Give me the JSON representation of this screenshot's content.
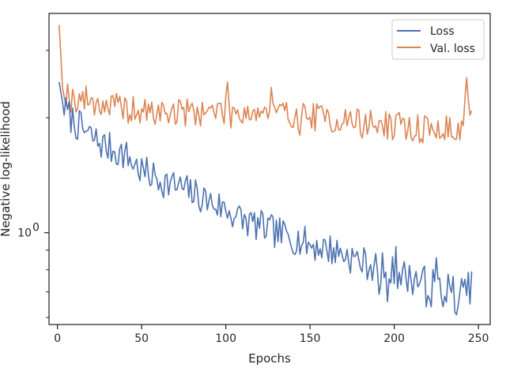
{
  "chart_data": {
    "type": "line",
    "title": "",
    "xlabel": "Epochs",
    "ylabel": "Negative log-likelihood",
    "x_ticks": [
      0,
      50,
      100,
      150,
      200,
      250
    ],
    "x_tick_labels": [
      "0",
      "50",
      "100",
      "150",
      "200",
      "250"
    ],
    "y_scale": "log",
    "y_tick_labels": [
      {
        "value": 1,
        "base": "10",
        "exp": "0"
      }
    ],
    "y_minor_ticks": [
      0.6,
      0.7,
      0.8,
      0.9,
      2,
      3
    ],
    "xlim": [
      -5,
      257
    ],
    "ylim": [
      0.575,
      3.75
    ],
    "grid": false,
    "legend_position": "upper right",
    "colors": {
      "loss": "#4c72b0",
      "val_loss": "#dd8452"
    },
    "x_start": 1,
    "x_step": 1,
    "series": [
      {
        "name": "Loss",
        "color": "#4c72b0",
        "anchors": [
          [
            1,
            2.48
          ],
          [
            3,
            2.2
          ],
          [
            5,
            2.08
          ],
          [
            10,
            1.95
          ],
          [
            15,
            1.86
          ],
          [
            20,
            1.78
          ],
          [
            25,
            1.72
          ],
          [
            30,
            1.67
          ],
          [
            40,
            1.6
          ],
          [
            50,
            1.45
          ],
          [
            60,
            1.38
          ],
          [
            75,
            1.3
          ],
          [
            90,
            1.21
          ],
          [
            100,
            1.15
          ],
          [
            110,
            1.08
          ],
          [
            120,
            1.04
          ],
          [
            130,
            1.0
          ],
          [
            140,
            0.97
          ],
          [
            150,
            0.93
          ],
          [
            160,
            0.91
          ],
          [
            170,
            0.88
          ],
          [
            180,
            0.84
          ],
          [
            190,
            0.81
          ],
          [
            200,
            0.79
          ],
          [
            210,
            0.76
          ],
          [
            220,
            0.74
          ],
          [
            230,
            0.72
          ],
          [
            240,
            0.71
          ],
          [
            246,
            0.72
          ]
        ],
        "noise": 0.045,
        "seed": 7,
        "spikes": [
          [
            191,
            0.69
          ],
          [
            196,
            0.66
          ],
          [
            201,
            0.92
          ],
          [
            219,
            0.64
          ],
          [
            222,
            0.64
          ],
          [
            225,
            0.86
          ],
          [
            229,
            0.64
          ],
          [
            236,
            0.62
          ],
          [
            237,
            0.61
          ],
          [
            241,
            0.72
          ]
        ],
        "values": []
      },
      {
        "name": "Val. loss",
        "color": "#dd8452",
        "anchors": [
          [
            1,
            3.5
          ],
          [
            2,
            2.92
          ],
          [
            3,
            2.4
          ],
          [
            5,
            2.35
          ],
          [
            8,
            2.24
          ],
          [
            15,
            2.24
          ],
          [
            25,
            2.18
          ],
          [
            50,
            2.06
          ],
          [
            75,
            2.07
          ],
          [
            100,
            2.09
          ],
          [
            125,
            2.06
          ],
          [
            150,
            2.02
          ],
          [
            175,
            1.96
          ],
          [
            200,
            1.9
          ],
          [
            225,
            1.86
          ],
          [
            240,
            1.86
          ],
          [
            243,
            2.4
          ],
          [
            246,
            2.0
          ]
        ],
        "noise": 0.04,
        "seed": 19,
        "spikes": [
          [
            101,
            2.48
          ],
          [
            103,
            1.88
          ],
          [
            127,
            2.4
          ],
          [
            144,
            1.8
          ],
          [
            164,
            1.84
          ],
          [
            181,
            1.77
          ],
          [
            196,
            1.76
          ],
          [
            212,
            1.79
          ],
          [
            228,
            1.78
          ],
          [
            235,
            1.78
          ]
        ],
        "values": []
      }
    ]
  }
}
